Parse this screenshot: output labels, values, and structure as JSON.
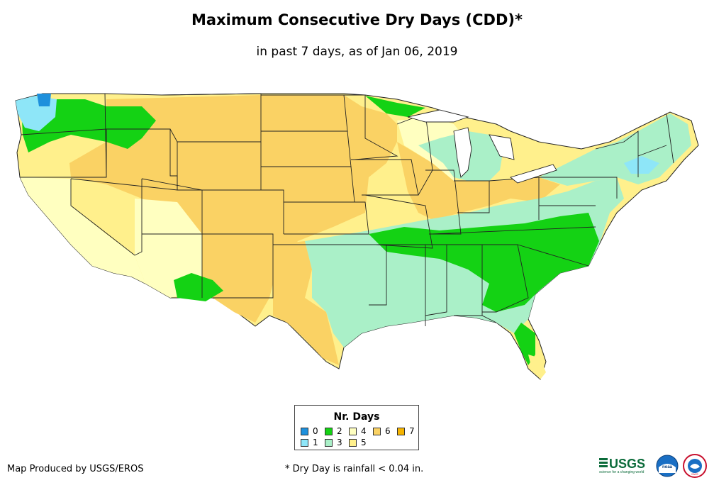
{
  "title": "Maximum Consecutive Dry Days (CDD)*",
  "subtitle": "in past 7 days, as of Jan 06, 2019",
  "legend": {
    "title": "Nr. Days",
    "items": [
      {
        "label": "0",
        "color": "#1e90dc"
      },
      {
        "label": "1",
        "color": "#8ee6f8"
      },
      {
        "label": "2",
        "color": "#14d214"
      },
      {
        "label": "3",
        "color": "#aaf0c8"
      },
      {
        "label": "4",
        "color": "#ffffc0"
      },
      {
        "label": "5",
        "color": "#fff08c"
      },
      {
        "label": "6",
        "color": "#fad264"
      },
      {
        "label": "7",
        "color": "#f5b400"
      }
    ]
  },
  "footer": {
    "credit": "Map Produced by USGS/EROS",
    "note": "* Dry Day is rainfall < 0.04 in."
  },
  "logos": {
    "usgs": "USGS",
    "usgs_tagline": "science for a changing world",
    "noaa": "noaa",
    "nws": "NWS"
  },
  "colors": {
    "state_border": "#222222",
    "day0": "#1e90dc",
    "day1": "#8ee6f8",
    "day2": "#14d214",
    "day3": "#aaf0c8",
    "day4": "#ffffc0",
    "day5": "#fff08c",
    "day6": "#fad264",
    "day7": "#f5b400"
  }
}
